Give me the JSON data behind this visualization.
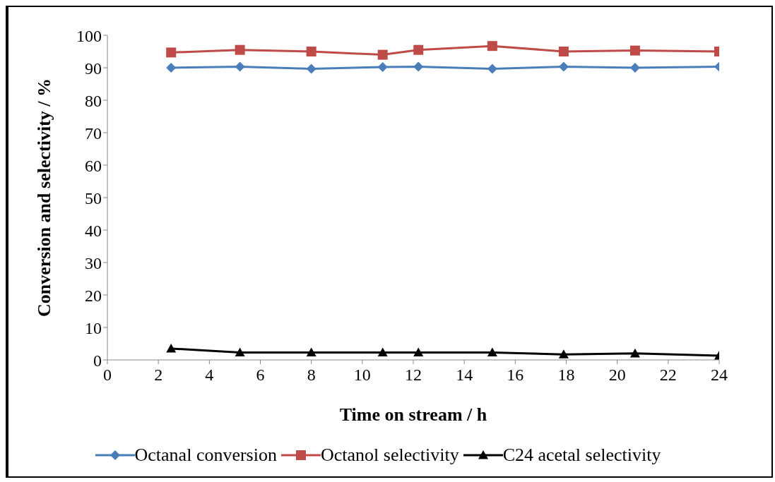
{
  "chart_data": {
    "type": "line",
    "xlabel": "Time on stream / h",
    "ylabel": "Conversion and selectivity / %",
    "x": [
      2.5,
      5.2,
      8,
      10.8,
      12.2,
      15.1,
      17.9,
      20.7,
      24
    ],
    "series": [
      {
        "name": "Octanal conversion",
        "color": "#4a7ebb",
        "marker": "diamond",
        "values": [
          90,
          90.3,
          89.7,
          90.2,
          90.3,
          89.7,
          90.3,
          90,
          90.3
        ]
      },
      {
        "name": "Octanol selectivity",
        "color": "#be4b48",
        "marker": "square",
        "values": [
          94.7,
          95.5,
          95,
          94,
          95.5,
          96.7,
          95,
          95.3,
          95
        ]
      },
      {
        "name": "C24 acetal selectivity",
        "color": "#000000",
        "marker": "triangle",
        "values": [
          3.5,
          2.3,
          2.3,
          2.3,
          2.3,
          2.3,
          1.7,
          2,
          1.3
        ]
      }
    ],
    "xlim": [
      0,
      24
    ],
    "xticks": [
      0,
      2,
      4,
      6,
      8,
      10,
      12,
      14,
      16,
      18,
      20,
      22,
      24
    ],
    "ylim": [
      0,
      100
    ],
    "yticks": [
      0,
      10,
      20,
      30,
      40,
      50,
      60,
      70,
      80,
      90,
      100
    ],
    "grid": false,
    "legend": "bottom",
    "line_style": "solid"
  }
}
